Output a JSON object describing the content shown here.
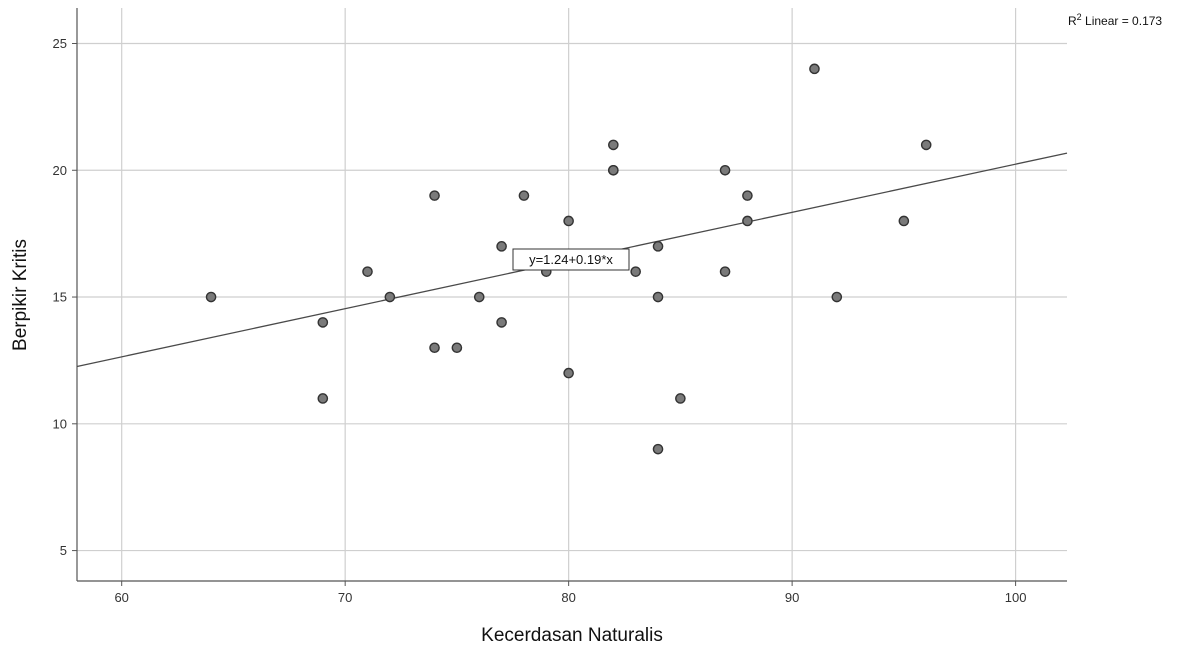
{
  "chart_data": {
    "type": "scatter",
    "xlabel": "Kecerdasan Naturalis",
    "ylabel": "Berpikir Kritis",
    "xlim": [
      58,
      102.3
    ],
    "ylim": [
      3.8,
      26.4
    ],
    "xticks": [
      60,
      70,
      80,
      90,
      100
    ],
    "yticks": [
      5,
      10,
      15,
      20,
      25
    ],
    "grid": true,
    "points": [
      {
        "x": 64,
        "y": 15
      },
      {
        "x": 69,
        "y": 14
      },
      {
        "x": 69,
        "y": 11
      },
      {
        "x": 71,
        "y": 16
      },
      {
        "x": 72,
        "y": 15
      },
      {
        "x": 74,
        "y": 19
      },
      {
        "x": 74,
        "y": 13
      },
      {
        "x": 75,
        "y": 13
      },
      {
        "x": 76,
        "y": 15
      },
      {
        "x": 77,
        "y": 17
      },
      {
        "x": 77,
        "y": 14
      },
      {
        "x": 78,
        "y": 19
      },
      {
        "x": 79,
        "y": 16
      },
      {
        "x": 80,
        "y": 18
      },
      {
        "x": 80,
        "y": 12
      },
      {
        "x": 82,
        "y": 21
      },
      {
        "x": 82,
        "y": 20
      },
      {
        "x": 82,
        "y": 20
      },
      {
        "x": 83,
        "y": 16
      },
      {
        "x": 84,
        "y": 17
      },
      {
        "x": 84,
        "y": 15
      },
      {
        "x": 84,
        "y": 9
      },
      {
        "x": 85,
        "y": 11
      },
      {
        "x": 87,
        "y": 20
      },
      {
        "x": 87,
        "y": 16
      },
      {
        "x": 88,
        "y": 19
      },
      {
        "x": 88,
        "y": 18
      },
      {
        "x": 91,
        "y": 24
      },
      {
        "x": 92,
        "y": 15
      },
      {
        "x": 95,
        "y": 18
      },
      {
        "x": 96,
        "y": 21
      }
    ],
    "fit_line": {
      "intercept": 1.24,
      "slope": 0.19,
      "equation_label": "y=1.24+0.19*x",
      "r2_prefix": "R",
      "r2_sup": "2",
      "r2_text": " Linear = 0.173"
    },
    "colors": {
      "point_fill": "#7a7a7a",
      "point_stroke": "#333333",
      "grid": "#cfcfcf",
      "axis": "#555555",
      "fit_line": "#4a4a4a"
    }
  }
}
